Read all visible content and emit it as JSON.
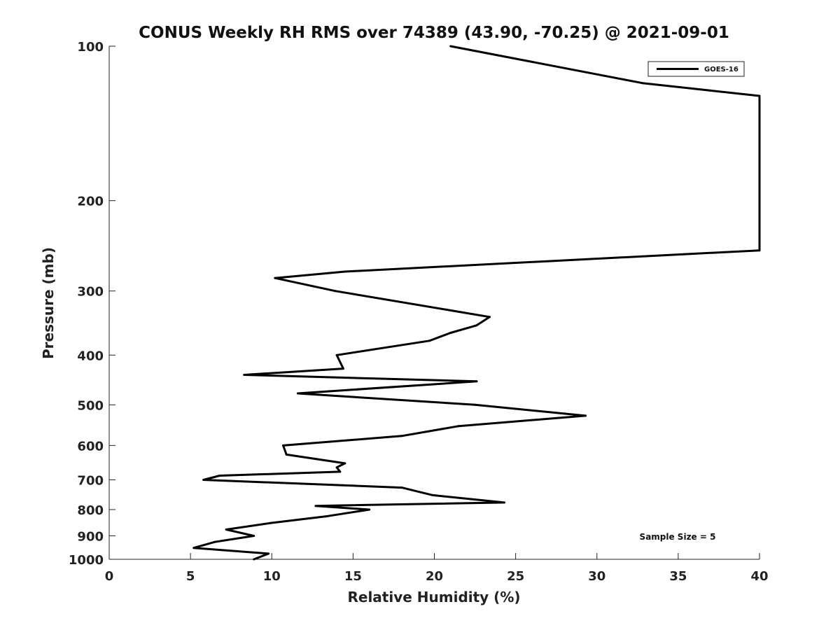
{
  "chart_data": {
    "type": "line",
    "title": "CONUS Weekly RH RMS over 74389 (43.90, -70.25) @ 2021-09-01",
    "xlabel": "Relative Humidity (%)",
    "ylabel": "Pressure (mb)",
    "xlim": [
      0,
      40
    ],
    "ylim": [
      1000,
      100
    ],
    "yscale": "log",
    "y_reversed": true,
    "grid": false,
    "legend_position": "top-right",
    "x_ticks": [
      0,
      5,
      10,
      15,
      20,
      25,
      30,
      35,
      40
    ],
    "y_ticks": [
      100,
      200,
      300,
      400,
      500,
      600,
      700,
      800,
      900,
      1000
    ],
    "annotation": "Sample Size = 5",
    "series": [
      {
        "name": "GOES-16",
        "color": "#000000",
        "points": [
          {
            "x": 21.0,
            "y": 100
          },
          {
            "x": 32.8,
            "y": 118
          },
          {
            "x": 40.0,
            "y": 125
          },
          {
            "x": 40.0,
            "y": 250
          },
          {
            "x": 14.5,
            "y": 275
          },
          {
            "x": 10.2,
            "y": 283
          },
          {
            "x": 13.9,
            "y": 300
          },
          {
            "x": 23.4,
            "y": 337
          },
          {
            "x": 22.6,
            "y": 350
          },
          {
            "x": 21.0,
            "y": 362
          },
          {
            "x": 19.7,
            "y": 375
          },
          {
            "x": 14.0,
            "y": 400
          },
          {
            "x": 14.4,
            "y": 425
          },
          {
            "x": 8.3,
            "y": 437
          },
          {
            "x": 22.6,
            "y": 450
          },
          {
            "x": 11.6,
            "y": 475
          },
          {
            "x": 22.5,
            "y": 500
          },
          {
            "x": 29.3,
            "y": 525
          },
          {
            "x": 21.5,
            "y": 550
          },
          {
            "x": 18.0,
            "y": 575
          },
          {
            "x": 10.7,
            "y": 600
          },
          {
            "x": 10.9,
            "y": 625
          },
          {
            "x": 14.5,
            "y": 650
          },
          {
            "x": 14.0,
            "y": 662
          },
          {
            "x": 14.2,
            "y": 675
          },
          {
            "x": 6.8,
            "y": 687
          },
          {
            "x": 5.8,
            "y": 700
          },
          {
            "x": 18.0,
            "y": 725
          },
          {
            "x": 19.9,
            "y": 750
          },
          {
            "x": 24.3,
            "y": 775
          },
          {
            "x": 12.7,
            "y": 787
          },
          {
            "x": 16.0,
            "y": 800
          },
          {
            "x": 13.3,
            "y": 825
          },
          {
            "x": 9.9,
            "y": 850
          },
          {
            "x": 7.2,
            "y": 875
          },
          {
            "x": 8.9,
            "y": 900
          },
          {
            "x": 6.5,
            "y": 925
          },
          {
            "x": 5.2,
            "y": 950
          },
          {
            "x": 9.8,
            "y": 975
          },
          {
            "x": 8.9,
            "y": 1000
          }
        ]
      }
    ]
  }
}
